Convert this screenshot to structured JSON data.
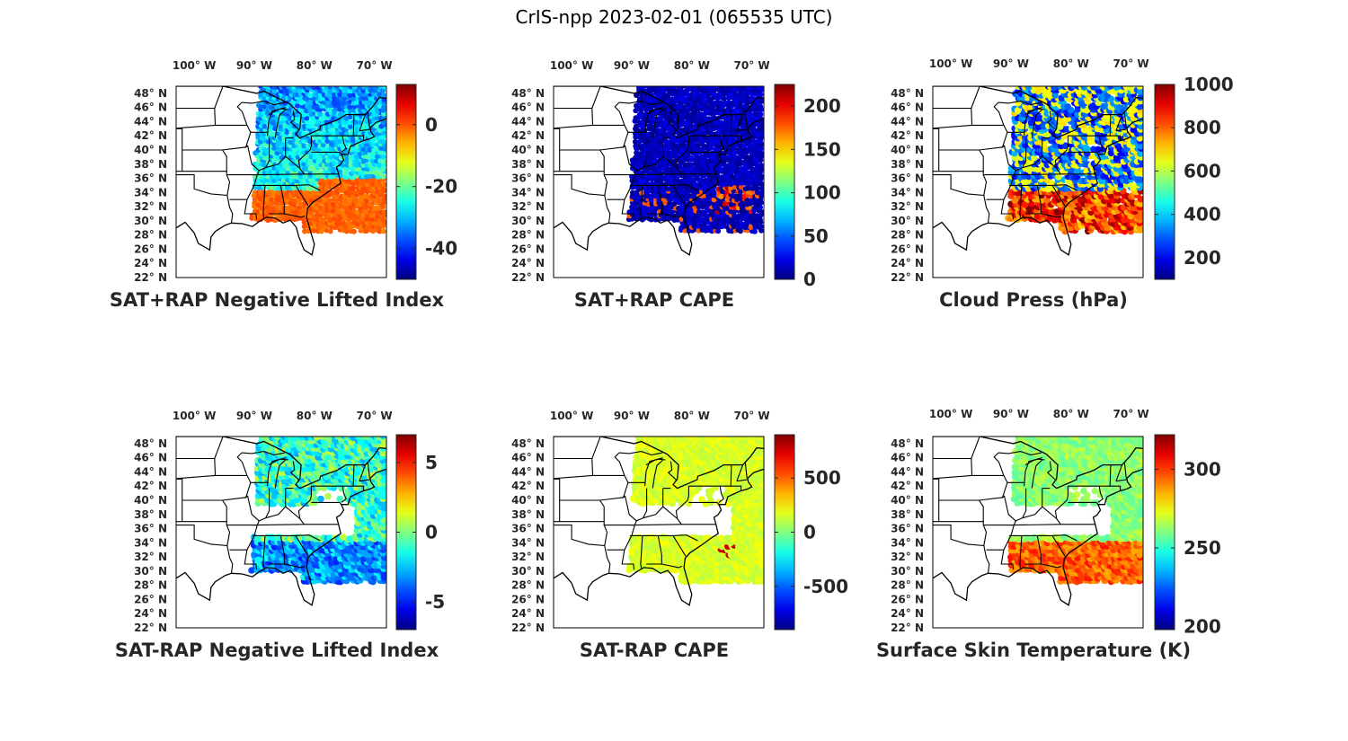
{
  "figure": {
    "title": "CrIS-npp 2023-02-01 (065535 UTC)"
  },
  "lon_ticks": [
    "100° W",
    "90° W",
    "80° W",
    "70° W"
  ],
  "lat_ticks": [
    "48° N",
    "46° N",
    "44° N",
    "42° N",
    "40° N",
    "38° N",
    "36° N",
    "34° N",
    "32° N",
    "30° N",
    "28° N",
    "26° N",
    "24° N",
    "22° N"
  ],
  "map_extent": {
    "lon": [
      -103,
      -68
    ],
    "lat": [
      22,
      49
    ]
  },
  "panels": [
    {
      "id": "sat-rap-neg-lifted-index",
      "title": "SAT+RAP Negative Lifted Index",
      "colorbar": {
        "min": -50,
        "max": 13,
        "ticks": [
          0,
          -20,
          -40
        ],
        "tick_labels": [
          "0",
          "-20",
          "-40"
        ]
      },
      "field": "nli_total"
    },
    {
      "id": "sat-rap-cape",
      "title": "SAT+RAP CAPE",
      "colorbar": {
        "min": 0,
        "max": 225,
        "ticks": [
          200,
          150,
          100,
          50,
          0
        ],
        "tick_labels": [
          "200",
          "150",
          "100",
          "50",
          "0"
        ]
      },
      "field": "cape_total"
    },
    {
      "id": "cloud-press",
      "title": "Cloud Press (hPa)",
      "colorbar": {
        "min": 100,
        "max": 1000,
        "ticks": [
          1000,
          800,
          600,
          400,
          200
        ],
        "tick_labels": [
          "1000",
          "800",
          "600",
          "400",
          "200"
        ]
      },
      "field": "cloud_press"
    },
    {
      "id": "sat-minus-rap-neg-lifted-index",
      "title": "SAT-RAP Negative Lifted Index",
      "colorbar": {
        "min": -7,
        "max": 7,
        "ticks": [
          5,
          0,
          -5
        ],
        "tick_labels": [
          "5",
          "0",
          "-5"
        ]
      },
      "field": "nli_diff"
    },
    {
      "id": "sat-minus-rap-cape",
      "title": "SAT-RAP CAPE",
      "colorbar": {
        "min": -900,
        "max": 900,
        "ticks": [
          500,
          0,
          -500
        ],
        "tick_labels": [
          "500",
          "0",
          "-500"
        ]
      },
      "field": "cape_diff"
    },
    {
      "id": "surface-skin-temperature",
      "title": "Surface Skin Temperature (K)",
      "colorbar": {
        "min": 198,
        "max": 322,
        "ticks": [
          300,
          250,
          200
        ],
        "tick_labels": [
          "300",
          "250",
          "200"
        ]
      },
      "field": "skin_temp"
    }
  ],
  "colors": {
    "axis": "#000000",
    "text": "#262626"
  }
}
